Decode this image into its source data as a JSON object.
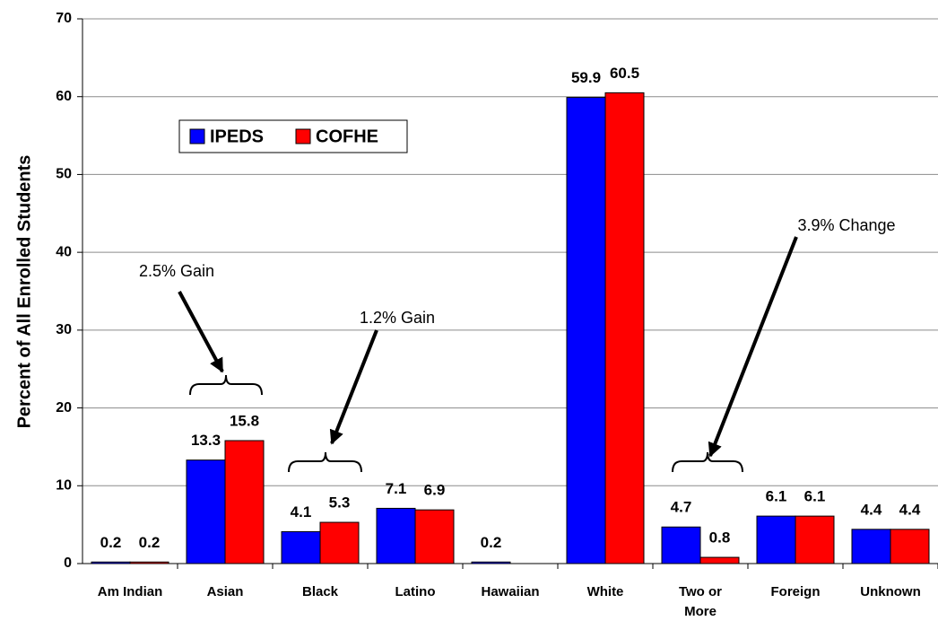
{
  "chart_data": {
    "type": "bar",
    "y_label": "Percent of All Enrolled Students",
    "categories": [
      "Am Indian",
      "Asian",
      "Black",
      "Latino",
      "Hawaiian",
      "White",
      "Two or More",
      "Foreign",
      "Unknown"
    ],
    "series": [
      {
        "name": "IPEDS",
        "color": "#0000ff",
        "values": [
          0.2,
          13.3,
          4.1,
          7.1,
          0.2,
          59.9,
          4.7,
          6.1,
          4.4
        ]
      },
      {
        "name": "COFHE",
        "color": "#ff0000",
        "values": [
          0.2,
          15.8,
          5.3,
          6.9,
          null,
          60.5,
          0.8,
          6.1,
          4.4
        ]
      }
    ],
    "ylim": [
      0,
      70
    ],
    "yticks": [
      0,
      10,
      20,
      30,
      40,
      50,
      60,
      70
    ],
    "grid": true,
    "annotations": [
      "2.5% Gain",
      "1.2% Gain",
      "3.9% Change"
    ]
  }
}
